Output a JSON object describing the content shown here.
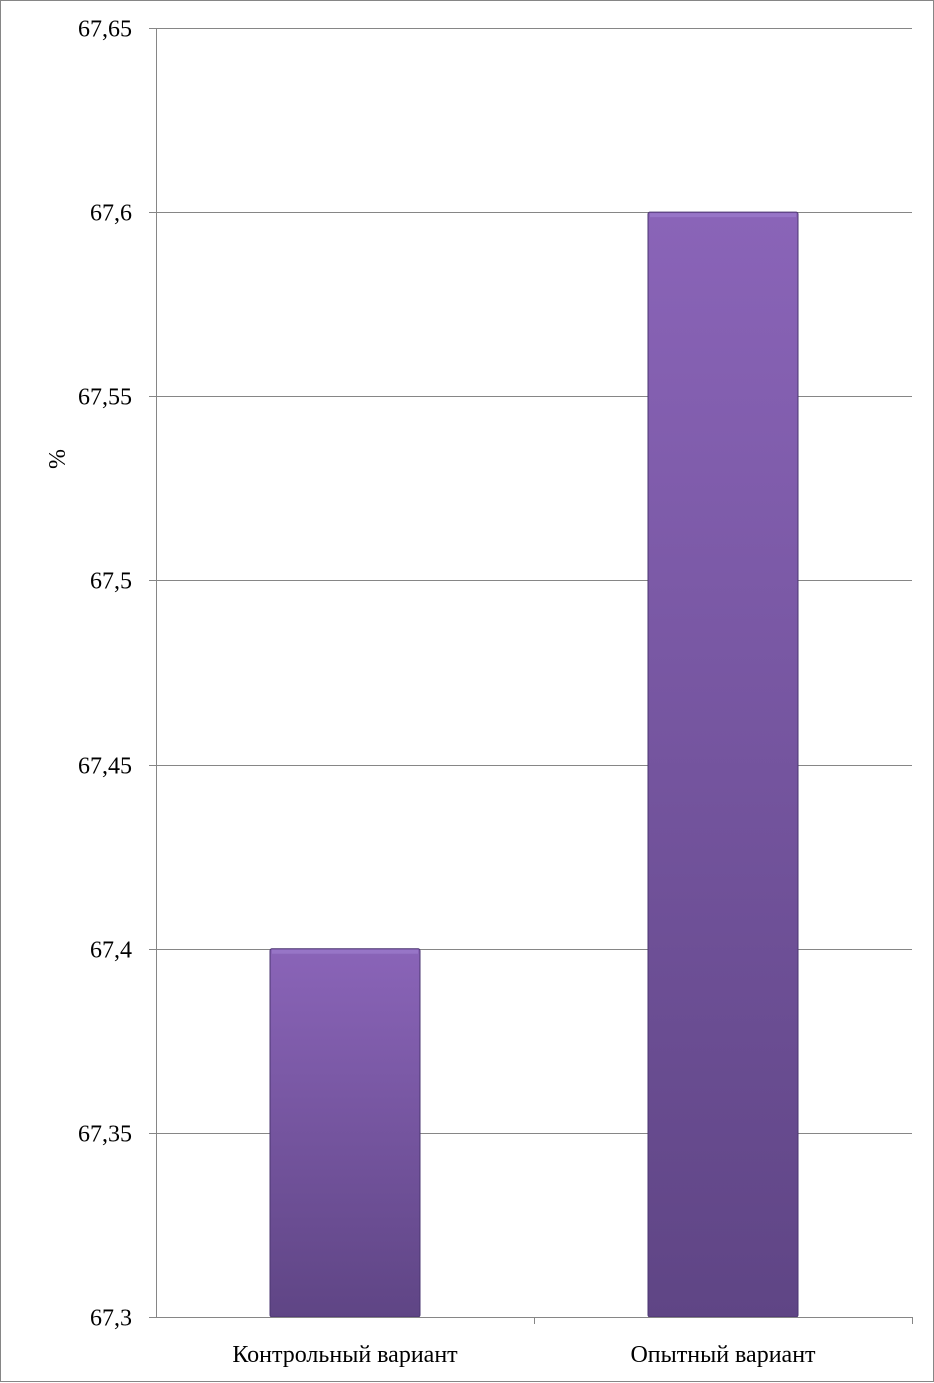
{
  "chart_data": {
    "type": "bar",
    "categories": [
      "Контрольный вариант",
      "Опытный вариант"
    ],
    "values": [
      67.4,
      67.6
    ],
    "title": "",
    "xlabel": "",
    "ylabel": "%",
    "ylim": [
      67.3,
      67.65
    ],
    "yticks": [
      67.3,
      67.35,
      67.4,
      67.45,
      67.5,
      67.55,
      67.6,
      67.65
    ],
    "ytick_labels": [
      "67,3",
      "67,35",
      "67,4",
      "67,45",
      "67,5",
      "67,55",
      "67,6",
      "67,65"
    ],
    "grid": true,
    "legend": "none",
    "colors": {
      "bar_top": "#8a64b8",
      "bar_bottom": "#5f4585",
      "bar_edge": "#4a3570",
      "gridline": "#868686",
      "axis": "#868686",
      "border": "#868686"
    }
  }
}
